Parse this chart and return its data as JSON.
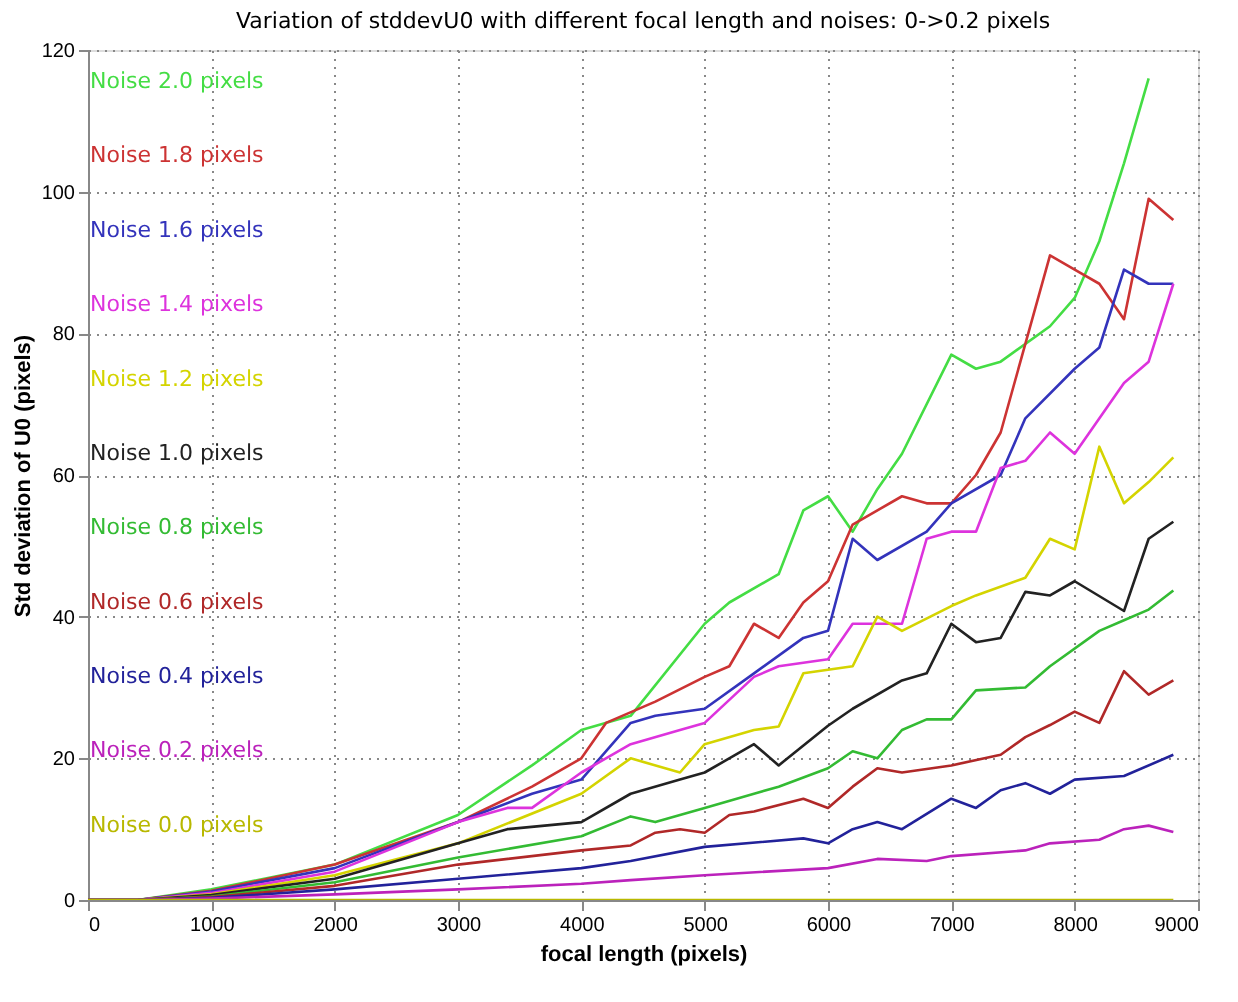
{
  "chart_data": {
    "type": "line",
    "title": "Variation of stddevU0 with different focal length and noises: 0->0.2 pixels",
    "xlabel": "focal length (pixels)",
    "ylabel": "Std deviation of U0 (pixels)",
    "xlim": [
      0,
      9000
    ],
    "ylim": [
      0,
      120
    ],
    "xticks": [
      0,
      1000,
      2000,
      3000,
      4000,
      5000,
      6000,
      7000,
      8000,
      9000
    ],
    "yticks": [
      0,
      20,
      40,
      60,
      80,
      100,
      120
    ],
    "grid": true,
    "legend": "top left",
    "line_style": "solid",
    "series": [
      {
        "name": "Noise 2.0 pixels",
        "color": "#44dd44",
        "x": [
          0,
          400,
          1000,
          2000,
          3000,
          3600,
          4000,
          4400,
          5000,
          5200,
          5600,
          5800,
          6000,
          6200,
          6400,
          6600,
          7000,
          7200,
          7400,
          7800,
          8000,
          8200,
          8400,
          8600
        ],
        "values": [
          0,
          0,
          1.5,
          5,
          12,
          19,
          24,
          26,
          39,
          42,
          46,
          55,
          57,
          52,
          58,
          63,
          77,
          75,
          76,
          81,
          85,
          93,
          104,
          116
        ]
      },
      {
        "name": "Noise 1.8 pixels",
        "color": "#cc3333",
        "x": [
          0,
          400,
          1000,
          2000,
          3000,
          3600,
          4000,
          4200,
          4600,
          5000,
          5200,
          5400,
          5600,
          5800,
          6000,
          6200,
          6600,
          6800,
          7000,
          7200,
          7400,
          7800,
          8000,
          8200,
          8400,
          8600,
          8800
        ],
        "values": [
          0,
          0,
          1.3,
          5,
          11,
          16,
          20,
          25,
          28,
          31.5,
          33,
          39,
          37,
          42,
          45,
          53,
          57,
          56,
          56,
          60,
          66,
          91,
          89,
          87,
          82,
          99,
          96
        ]
      },
      {
        "name": "Noise 1.6 pixels",
        "color": "#3333bb",
        "x": [
          0,
          400,
          1000,
          2000,
          3000,
          3600,
          4000,
          4400,
          4600,
          5000,
          5400,
          5800,
          6000,
          6200,
          6400,
          6800,
          7000,
          7400,
          7600,
          8000,
          8200,
          8400,
          8600,
          8800
        ],
        "values": [
          0,
          0,
          1.2,
          4.5,
          11,
          15,
          17,
          25,
          26,
          27,
          32,
          37,
          38,
          51,
          48,
          52,
          56,
          60,
          68,
          75,
          78,
          89,
          87,
          87
        ]
      },
      {
        "name": "Noise 1.4 pixels",
        "color": "#dd33dd",
        "x": [
          0,
          400,
          1000,
          2000,
          3000,
          3400,
          3600,
          4000,
          4400,
          4800,
          5000,
          5400,
          5600,
          6000,
          6200,
          6600,
          6800,
          7000,
          7200,
          7400,
          7600,
          7800,
          8000,
          8400,
          8600,
          8800
        ],
        "values": [
          0,
          0,
          1,
          4,
          11,
          13,
          13,
          18,
          22,
          24,
          25,
          31.5,
          33,
          34,
          39,
          39,
          51,
          52,
          52,
          61,
          62,
          66,
          63,
          73,
          76,
          87
        ]
      },
      {
        "name": "Noise 1.2 pixels",
        "color": "#d4d400",
        "x": [
          0,
          400,
          1000,
          2000,
          3000,
          4000,
          4400,
          4800,
          5000,
          5400,
          5600,
          5800,
          6200,
          6400,
          6600,
          7000,
          7200,
          7600,
          7800,
          8000,
          8200,
          8400,
          8600,
          8800
        ],
        "values": [
          0,
          0,
          0.8,
          3.5,
          8,
          15,
          20,
          18,
          22,
          24,
          24.5,
          32,
          33,
          40,
          38,
          41.5,
          43,
          45.5,
          51,
          49.5,
          64,
          56,
          59,
          62.5
        ]
      },
      {
        "name": "Noise 1.0 pixels",
        "color": "#222222",
        "x": [
          0,
          400,
          1000,
          2000,
          3000,
          3400,
          4000,
          4400,
          4800,
          5000,
          5400,
          5600,
          6000,
          6200,
          6600,
          6800,
          7000,
          7200,
          7400,
          7600,
          7800,
          8000,
          8400,
          8600,
          8800
        ],
        "values": [
          0,
          0,
          0.7,
          3,
          8,
          10,
          11,
          15,
          17,
          18,
          22,
          19,
          24.6,
          27,
          31,
          32,
          39,
          36.4,
          37,
          43.5,
          43,
          45,
          40.8,
          51,
          53.4
        ]
      },
      {
        "name": "Noise 0.8 pixels",
        "color": "#33bb33",
        "x": [
          0,
          400,
          1000,
          2000,
          3000,
          4000,
          4400,
          4600,
          5000,
          5400,
          5600,
          6000,
          6200,
          6400,
          6600,
          6800,
          7000,
          7200,
          7600,
          7800,
          8200,
          8400,
          8600,
          8800
        ],
        "values": [
          0,
          0,
          0.5,
          2.5,
          6,
          9,
          11.8,
          11,
          13,
          15,
          16,
          18.6,
          21,
          20,
          24,
          25.5,
          25.5,
          29.6,
          30,
          33,
          38,
          39.5,
          41,
          43.7
        ]
      },
      {
        "name": "Noise 0.6 pixels",
        "color": "#b02828",
        "x": [
          0,
          400,
          1000,
          2000,
          3000,
          4000,
          4400,
          4600,
          4800,
          5000,
          5200,
          5400,
          5800,
          6000,
          6200,
          6400,
          6600,
          7000,
          7400,
          7600,
          7800,
          8000,
          8200,
          8400,
          8600,
          8800
        ],
        "values": [
          0,
          0,
          0.4,
          2,
          5,
          7,
          7.7,
          9.5,
          10,
          9.5,
          12,
          12.5,
          14.3,
          13,
          16,
          18.6,
          18,
          19,
          20.5,
          23,
          24.7,
          26.6,
          25,
          32.3,
          29,
          31
        ]
      },
      {
        "name": "Noise 0.4 pixels",
        "color": "#22229a",
        "x": [
          0,
          400,
          1000,
          2000,
          3000,
          4000,
          4400,
          5000,
          5800,
          6000,
          6200,
          6400,
          6600,
          7000,
          7200,
          7400,
          7600,
          7800,
          8000,
          8400,
          8800
        ],
        "values": [
          0,
          0,
          0.3,
          1.5,
          3,
          4.5,
          5.5,
          7.5,
          8.7,
          8,
          10,
          11,
          10,
          14.3,
          13,
          15.5,
          16.5,
          15,
          17,
          17.5,
          20.5
        ]
      },
      {
        "name": "Noise 0.2 pixels",
        "color": "#bb22bb",
        "x": [
          0,
          400,
          1000,
          2000,
          3000,
          4000,
          4400,
          5000,
          6000,
          6400,
          6800,
          7000,
          7600,
          7800,
          8200,
          8400,
          8600,
          8800
        ],
        "values": [
          0,
          0,
          0.2,
          0.8,
          1.5,
          2.3,
          2.8,
          3.5,
          4.5,
          5.8,
          5.5,
          6.2,
          7,
          8,
          8.5,
          10,
          10.5,
          9.6
        ]
      },
      {
        "name": "Noise 0.0 pixels",
        "color": "#b8b800",
        "x": [
          0,
          8800
        ],
        "values": [
          0,
          0
        ]
      }
    ]
  }
}
